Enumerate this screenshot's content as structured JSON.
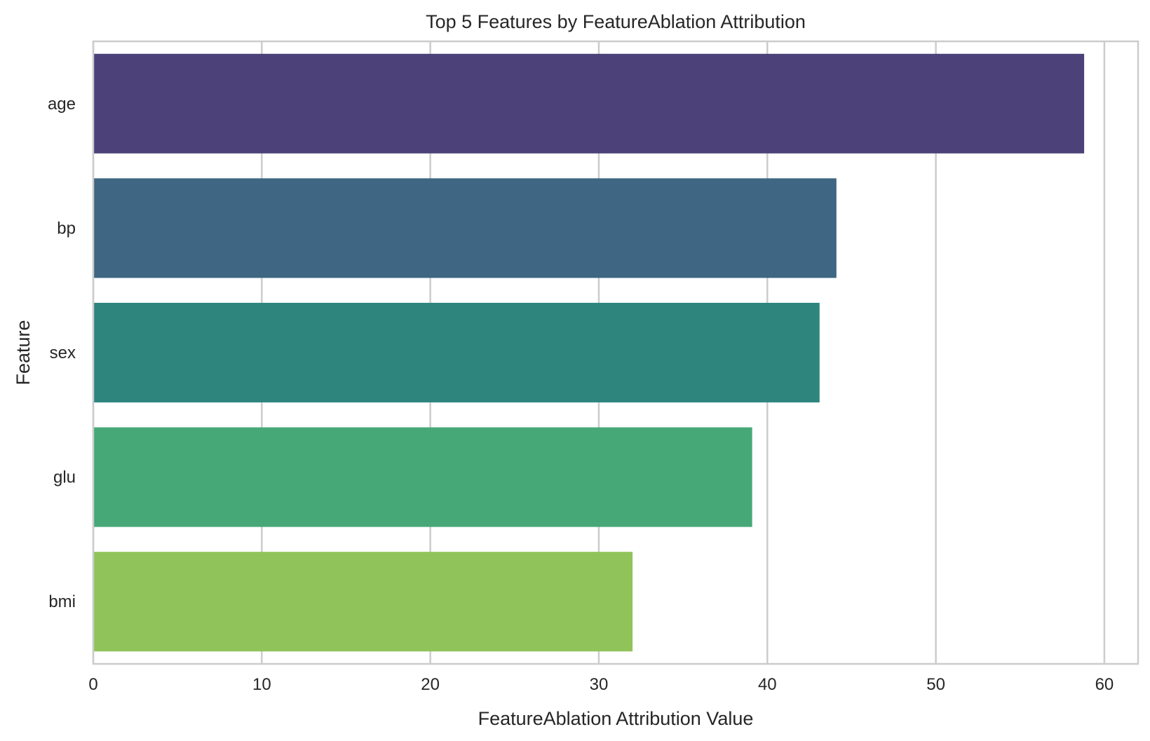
{
  "chart_data": {
    "type": "bar",
    "orientation": "horizontal",
    "title": "Top 5 Features by FeatureAblation Attribution",
    "xlabel": "FeatureAblation Attribution Value",
    "ylabel": "Feature",
    "categories": [
      "age",
      "bp",
      "sex",
      "glu",
      "bmi"
    ],
    "values": [
      58.8,
      44.1,
      43.1,
      39.1,
      32.0
    ],
    "colors": [
      "#4c4178",
      "#3f6682",
      "#2e857e",
      "#47a877",
      "#90c45a"
    ],
    "xlim": [
      0,
      62
    ],
    "xticks": [
      0,
      10,
      20,
      30,
      40,
      50,
      60
    ],
    "grid": true,
    "legend": "none"
  }
}
